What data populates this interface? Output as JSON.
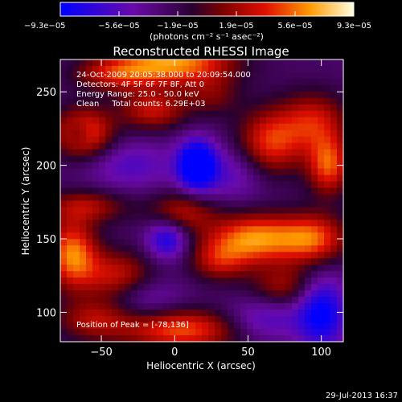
{
  "chart_data": {
    "type": "heatmap",
    "title": "Reconstructed RHESSI Image",
    "xlabel": "Heliocentric X (arcsec)",
    "ylabel": "Heliocentric Y (arcsec)",
    "xlim": [
      -78,
      115
    ],
    "ylim": [
      80,
      272
    ],
    "x_ticks": [
      -50,
      0,
      50,
      100
    ],
    "y_ticks": [
      100,
      150,
      200,
      250
    ],
    "x_tick_labels": [
      "−50",
      "0",
      "50",
      "100"
    ],
    "y_tick_labels": [
      "100",
      "150",
      "200",
      "250"
    ],
    "colorbar": {
      "range": [
        -9.3e-05,
        9.3e-05
      ],
      "tick_labels": [
        "−9.3e−05",
        "−5.6e−05",
        "−1.9e−05",
        "1.9e−05",
        "5.6e−05",
        "9.3e−05"
      ],
      "unit_label": "(photons cm⁻² s⁻¹ asec⁻²)"
    },
    "annotations": [
      "24-Oct-2009 20:05:38.000 to 20:09:54.000",
      "Detectors: 4F 5F 6F 7F 8F, Att 0",
      "Energy Range: 25.0 - 50.0 keV",
      "Clean     Total counts: 6.29E+03"
    ],
    "peak_label": "Position of Peak = [-78,136]",
    "sources": [
      {
        "x": -62,
        "y": 222,
        "v": 0.85,
        "sx": 14,
        "sy": 12
      },
      {
        "x": -65,
        "y": 222,
        "v": -0.35,
        "sx": 6,
        "sy": 6
      },
      {
        "x": -40,
        "y": 262,
        "v": 0.55,
        "sx": 20,
        "sy": 8
      },
      {
        "x": 0,
        "y": 270,
        "v": 0.95,
        "sx": 28,
        "sy": 10
      },
      {
        "x": -15,
        "y": 238,
        "v": 0.6,
        "sx": 16,
        "sy": 10
      },
      {
        "x": 25,
        "y": 248,
        "v": 0.35,
        "sx": 14,
        "sy": 10
      },
      {
        "x": 65,
        "y": 215,
        "v": 0.75,
        "sx": 16,
        "sy": 16
      },
      {
        "x": 95,
        "y": 230,
        "v": 0.6,
        "sx": 16,
        "sy": 14
      },
      {
        "x": 105,
        "y": 200,
        "v": 0.8,
        "sx": 10,
        "sy": 14
      },
      {
        "x": 15,
        "y": 200,
        "v": -1.0,
        "sx": 9,
        "sy": 12
      },
      {
        "x": -30,
        "y": 200,
        "v": -0.35,
        "sx": 22,
        "sy": 12
      },
      {
        "x": 40,
        "y": 195,
        "v": -0.35,
        "sx": 18,
        "sy": 14
      },
      {
        "x": -60,
        "y": 172,
        "v": 0.5,
        "sx": 20,
        "sy": 8
      },
      {
        "x": 5,
        "y": 168,
        "v": 0.55,
        "sx": 16,
        "sy": 10
      },
      {
        "x": -5,
        "y": 150,
        "v": -0.65,
        "sx": 10,
        "sy": 10
      },
      {
        "x": -70,
        "y": 140,
        "v": 0.9,
        "sx": 12,
        "sy": 16
      },
      {
        "x": -40,
        "y": 125,
        "v": 0.6,
        "sx": 18,
        "sy": 12
      },
      {
        "x": 55,
        "y": 150,
        "v": 0.95,
        "sx": 22,
        "sy": 12
      },
      {
        "x": 95,
        "y": 150,
        "v": 0.75,
        "sx": 16,
        "sy": 12
      },
      {
        "x": 30,
        "y": 135,
        "v": 0.5,
        "sx": 14,
        "sy": 10
      },
      {
        "x": 75,
        "y": 118,
        "v": 0.45,
        "sx": 16,
        "sy": 10
      },
      {
        "x": 100,
        "y": 100,
        "v": -0.75,
        "sx": 12,
        "sy": 18
      },
      {
        "x": 60,
        "y": 95,
        "v": -0.4,
        "sx": 18,
        "sy": 10
      },
      {
        "x": 5,
        "y": 88,
        "v": 0.8,
        "sx": 28,
        "sy": 10
      },
      {
        "x": -55,
        "y": 95,
        "v": 0.5,
        "sx": 18,
        "sy": 10
      },
      {
        "x": -20,
        "y": 110,
        "v": -0.3,
        "sx": 18,
        "sy": 10
      }
    ]
  },
  "footer": {
    "date": "29-Jul-2013 16:37"
  }
}
